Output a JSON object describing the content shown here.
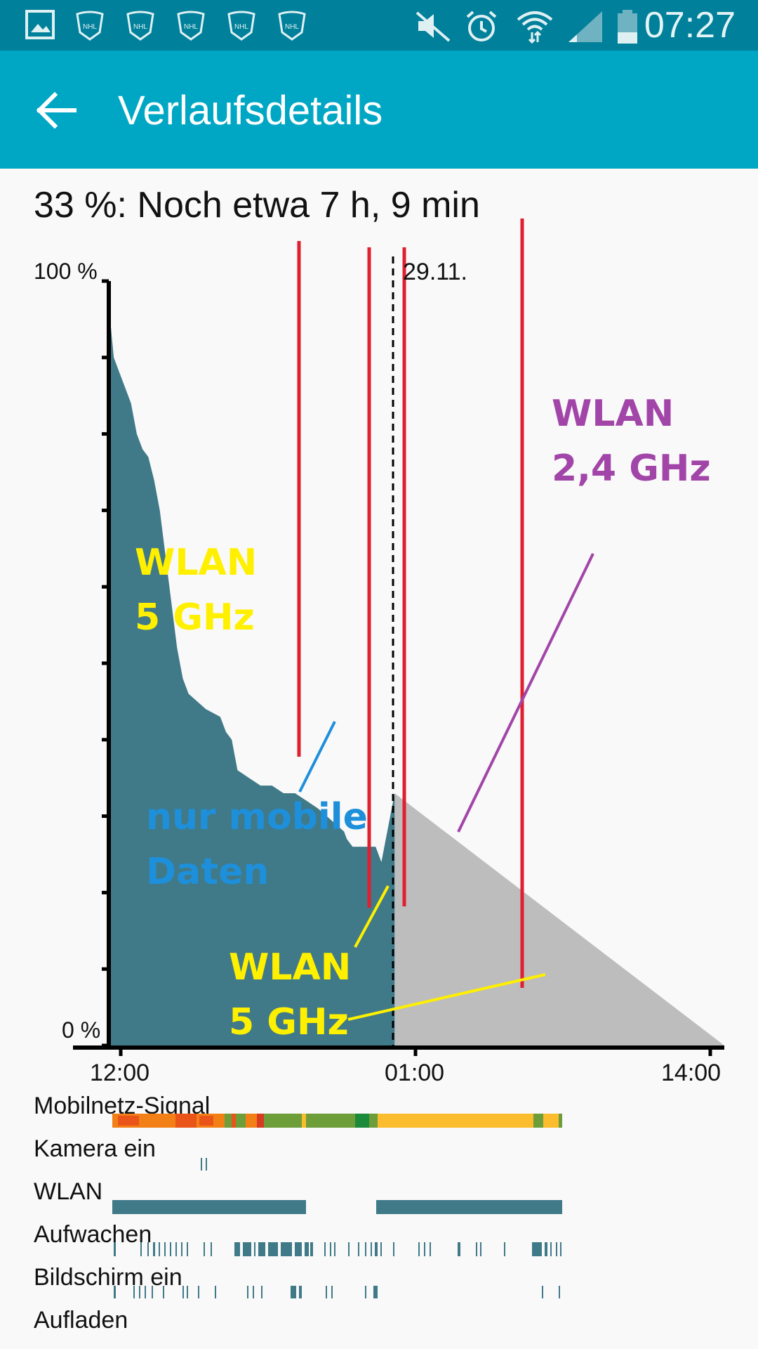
{
  "status_bar": {
    "time": "07:27",
    "left_icons": [
      "gallery-icon",
      "nhl-icon",
      "nhl-icon",
      "nhl-icon",
      "nhl-icon",
      "nhl-icon"
    ],
    "right_icons": [
      "mute-icon",
      "alarm-icon",
      "wifi-icon",
      "signal-icon",
      "battery-icon"
    ]
  },
  "app_bar": {
    "title": "Verlaufsdetails",
    "back_icon": "arrow-back-icon",
    "color": "#00a7c4"
  },
  "summary": "33 %: Noch etwa 7 h, 9 min",
  "chart_data": {
    "type": "area",
    "y_ticks": [
      "100 %",
      "0 %"
    ],
    "x_ticks": [
      "12:00",
      "01:00",
      "14:00"
    ],
    "date_marker": "29.11.",
    "ylim": [
      0,
      100
    ],
    "colors": {
      "history": "#407a88",
      "prediction": "#bdbdbd"
    },
    "history_points": [
      [
        0.0,
        94
      ],
      [
        0.05,
        90
      ],
      [
        0.15,
        88
      ],
      [
        0.25,
        86
      ],
      [
        0.35,
        84
      ],
      [
        0.45,
        80
      ],
      [
        0.55,
        78
      ],
      [
        0.65,
        77
      ],
      [
        0.75,
        74
      ],
      [
        0.85,
        70
      ],
      [
        0.95,
        64
      ],
      [
        1.05,
        58
      ],
      [
        1.15,
        52
      ],
      [
        1.25,
        48
      ],
      [
        1.35,
        46
      ],
      [
        1.5,
        45
      ],
      [
        1.65,
        44
      ],
      [
        1.9,
        43
      ],
      [
        2.0,
        41
      ],
      [
        2.1,
        40
      ],
      [
        2.2,
        36
      ],
      [
        2.4,
        35
      ],
      [
        2.6,
        34
      ],
      [
        2.8,
        34
      ],
      [
        3.0,
        33
      ],
      [
        3.2,
        33
      ],
      [
        3.4,
        32
      ],
      [
        3.6,
        31
      ],
      [
        3.75,
        30
      ],
      [
        3.9,
        29
      ],
      [
        4.05,
        28
      ],
      [
        4.1,
        27
      ],
      [
        4.2,
        26
      ],
      [
        4.6,
        26
      ],
      [
        4.7,
        24
      ],
      [
        5.05,
        33
      ]
    ],
    "prediction_end": [
      7.09,
      0
    ]
  },
  "annotations": [
    {
      "lines": [
        "WLAN",
        "5 GHz"
      ],
      "color": "#fff000"
    },
    {
      "lines": [
        "nur mobile",
        "Daten"
      ],
      "color": "#1e8fdb"
    },
    {
      "lines": [
        "WLAN",
        "5 GHz"
      ],
      "color": "#fff000"
    },
    {
      "lines": [
        "WLAN",
        "2,4 GHz"
      ],
      "color": "#a245a8"
    }
  ],
  "rows": [
    {
      "label": "Mobilnetz-Signal"
    },
    {
      "label": "Kamera ein"
    },
    {
      "label": "WLAN"
    },
    {
      "label": "Aufwachen"
    },
    {
      "label": "Bildschirm ein"
    },
    {
      "label": "Aufladen"
    }
  ]
}
